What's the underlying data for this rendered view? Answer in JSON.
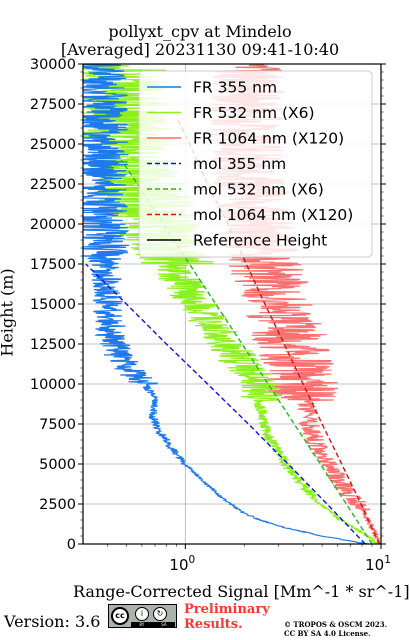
{
  "chart_data": {
    "type": "line",
    "title": "pollyxt_cpv at Mindelo",
    "subtitle": "[Averaged] 20231130 09:41-10:40",
    "xlabel": "Range-Corrected Signal [Mm^-1 * sr^-1]",
    "ylabel": "Height (m)",
    "xscale": "log",
    "xlim": [
      0.3,
      10
    ],
    "ylim": [
      0,
      30000
    ],
    "x_tick_labels": [
      "10^0",
      "10^1"
    ],
    "y_ticks": [
      0,
      2500,
      5000,
      7500,
      10000,
      12500,
      15000,
      17500,
      20000,
      22500,
      25000,
      27500,
      30000
    ],
    "y_tick_labels": [
      "0",
      "2500",
      "5000",
      "7500",
      "10000",
      "12500",
      "15000",
      "17500",
      "20000",
      "22500",
      "25000",
      "27500",
      "30000"
    ],
    "grid": true,
    "legend_position": "top-right",
    "series": [
      {
        "name": "FR 355 nm",
        "color": "#1e79ec",
        "style": "solid",
        "noisy": true,
        "y": [
          0,
          500,
          1000,
          1500,
          2000,
          2500,
          3000,
          4000,
          5000,
          6000,
          7000,
          8000,
          9000,
          10000,
          11000,
          12000,
          13000,
          14000,
          15000,
          16000,
          17000,
          18000,
          20000,
          22000,
          24000,
          26000,
          28000,
          30000
        ],
        "x": [
          8.5,
          5.0,
          3.3,
          2.4,
          1.95,
          1.7,
          1.5,
          1.22,
          1.0,
          0.85,
          0.74,
          0.68,
          0.7,
          0.62,
          0.5,
          0.45,
          0.42,
          0.41,
          0.4,
          0.4,
          0.39,
          0.39,
          0.38,
          0.38,
          0.38,
          0.38,
          0.38,
          0.38
        ]
      },
      {
        "name": "FR 532 nm (X6)",
        "color": "#8cf01e",
        "style": "solid",
        "noisy": true,
        "y": [
          0,
          500,
          1000,
          1500,
          2000,
          2500,
          3000,
          4000,
          5000,
          6000,
          7000,
          8000,
          9000,
          10000,
          11000,
          12000,
          13000,
          14000,
          15000,
          16000,
          17000,
          18000,
          20000,
          22000,
          24000,
          26000,
          28000,
          30000
        ],
        "x": [
          9.5,
          8.6,
          7.3,
          6.2,
          5.5,
          4.9,
          4.4,
          3.8,
          3.25,
          2.9,
          2.6,
          2.45,
          2.4,
          2.5,
          2.0,
          1.75,
          1.55,
          1.3,
          1.15,
          1.0,
          0.9,
          0.8,
          0.7,
          0.6,
          0.55,
          0.5,
          0.48,
          0.47
        ]
      },
      {
        "name": "FR 1064 nm (X120)",
        "color": "#f87070",
        "style": "solid",
        "noisy": true,
        "y": [
          0,
          500,
          1000,
          1500,
          2000,
          2500,
          3000,
          4000,
          5000,
          6000,
          7000,
          8000,
          9000,
          10000,
          11000,
          12000,
          13000,
          14000,
          15000,
          16000,
          17000,
          18000,
          20000,
          22000,
          24000,
          26000,
          28000,
          30000
        ],
        "x": [
          9.8,
          9.4,
          9.0,
          8.6,
          8.1,
          7.6,
          7.0,
          6.1,
          5.3,
          4.8,
          4.4,
          4.2,
          4.1,
          4.0,
          3.8,
          3.6,
          3.4,
          3.2,
          3.0,
          2.8,
          2.6,
          2.5,
          2.3,
          2.2,
          2.1,
          2.1,
          2.1,
          2.1
        ]
      },
      {
        "name": "mol 355 nm",
        "color": "#1010e0",
        "style": "dashed",
        "y": [
          0,
          2500,
          5000,
          7500,
          10000,
          12500,
          15000,
          17500
        ],
        "x": [
          8.3,
          5.3,
          3.35,
          2.1,
          1.3,
          0.8,
          0.5,
          0.31
        ]
      },
      {
        "name": "mol 532 nm (X6)",
        "color": "#20b820",
        "style": "dashed",
        "y": [
          0,
          2500,
          5000,
          7500,
          10000,
          12500,
          15000,
          17500,
          20000,
          22500,
          24000
        ],
        "x": [
          9.0,
          6.65,
          4.9,
          3.6,
          2.65,
          1.95,
          1.43,
          1.05,
          0.77,
          0.57,
          0.47
        ]
      },
      {
        "name": "mol 1064 nm (X120)",
        "color": "#d81010",
        "style": "dashed",
        "y": [
          0,
          2500,
          5000,
          7500,
          10000,
          12500,
          15000,
          17500,
          20000,
          22500,
          25000,
          26500
        ],
        "x": [
          9.8,
          7.9,
          6.3,
          5.0,
          4.0,
          3.2,
          2.55,
          2.05,
          1.65,
          1.3,
          1.05,
          0.92
        ]
      },
      {
        "name": "Reference Height",
        "color": "#000000",
        "style": "solid",
        "y": [],
        "x": []
      }
    ]
  },
  "footer": {
    "version": "Version: 3.6",
    "preliminary_line1": "Preliminary",
    "preliminary_line2": "Results.",
    "copyright_line1": "© TROPOS & OSCM 2023.",
    "copyright_line2": "CC BY SA 4.0 License.",
    "license_logo_text": "cc",
    "license_logo_by": "BY",
    "license_logo_sa": "SA"
  }
}
